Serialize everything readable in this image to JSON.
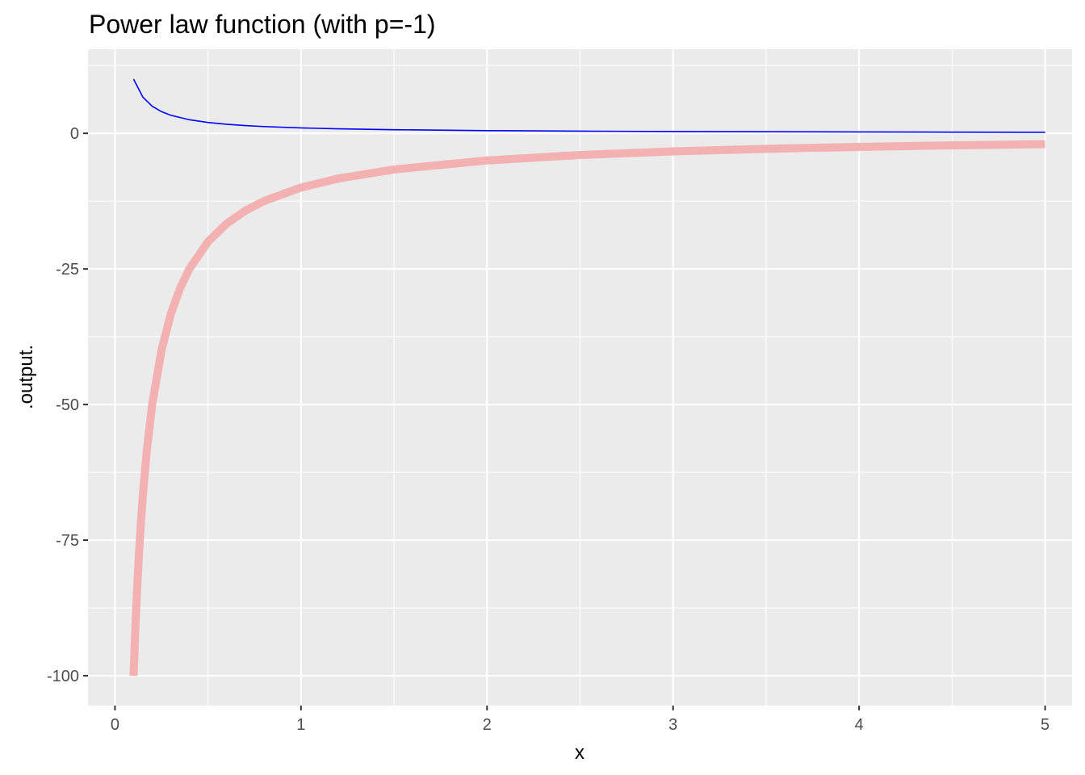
{
  "chart_data": {
    "type": "line",
    "title": "Power law function (with p=-1)",
    "xlabel": "x",
    "ylabel": ".output.",
    "xlim": [
      -0.145,
      5.145
    ],
    "ylim": [
      -105.5,
      15.5
    ],
    "x_ticks": [
      0,
      1,
      2,
      3,
      4,
      5
    ],
    "x_tick_labels": [
      "0",
      "1",
      "2",
      "3",
      "4",
      "5"
    ],
    "x_minor_ticks": [
      0.5,
      1.5,
      2.5,
      3.5,
      4.5
    ],
    "y_ticks": [
      -100,
      -75,
      -50,
      -25,
      0
    ],
    "y_tick_labels": [
      "-100",
      "-75",
      "-50",
      "-25",
      "0"
    ],
    "y_minor_ticks": [
      -87.5,
      -62.5,
      -37.5,
      -12.5,
      12.5
    ],
    "grid": true,
    "legend": "none",
    "panel_background": "#ebebeb",
    "grid_color": "#ffffff",
    "series": [
      {
        "color": "#0000ff",
        "x": [
          0.1,
          0.15,
          0.2,
          0.25,
          0.3,
          0.4,
          0.5,
          0.6,
          0.7,
          0.8,
          1.0,
          1.2,
          1.5,
          2.0,
          2.5,
          3.0,
          3.5,
          4.0,
          4.5,
          5.0
        ],
        "y": [
          10,
          6.667,
          5,
          4,
          3.333,
          2.5,
          2,
          1.667,
          1.429,
          1.25,
          1,
          0.833,
          0.667,
          0.5,
          0.4,
          0.333,
          0.286,
          0.25,
          0.222,
          0.2
        ]
      },
      {
        "color": "#f4b1b1",
        "x": [
          0.1,
          0.11,
          0.12,
          0.13,
          0.14,
          0.15,
          0.17,
          0.2,
          0.25,
          0.3,
          0.35,
          0.4,
          0.5,
          0.6,
          0.7,
          0.8,
          1.0,
          1.2,
          1.5,
          2.0,
          2.5,
          3.0,
          3.5,
          4.0,
          4.5,
          5.0
        ],
        "y": [
          -100,
          -90.909,
          -83.333,
          -76.923,
          -71.429,
          -66.667,
          -58.824,
          -50,
          -40,
          -33.333,
          -28.571,
          -25,
          -20,
          -16.667,
          -14.286,
          -12.5,
          -10,
          -8.333,
          -6.667,
          -5,
          -4,
          -3.333,
          -2.857,
          -2.5,
          -2.222,
          -2
        ]
      }
    ]
  }
}
